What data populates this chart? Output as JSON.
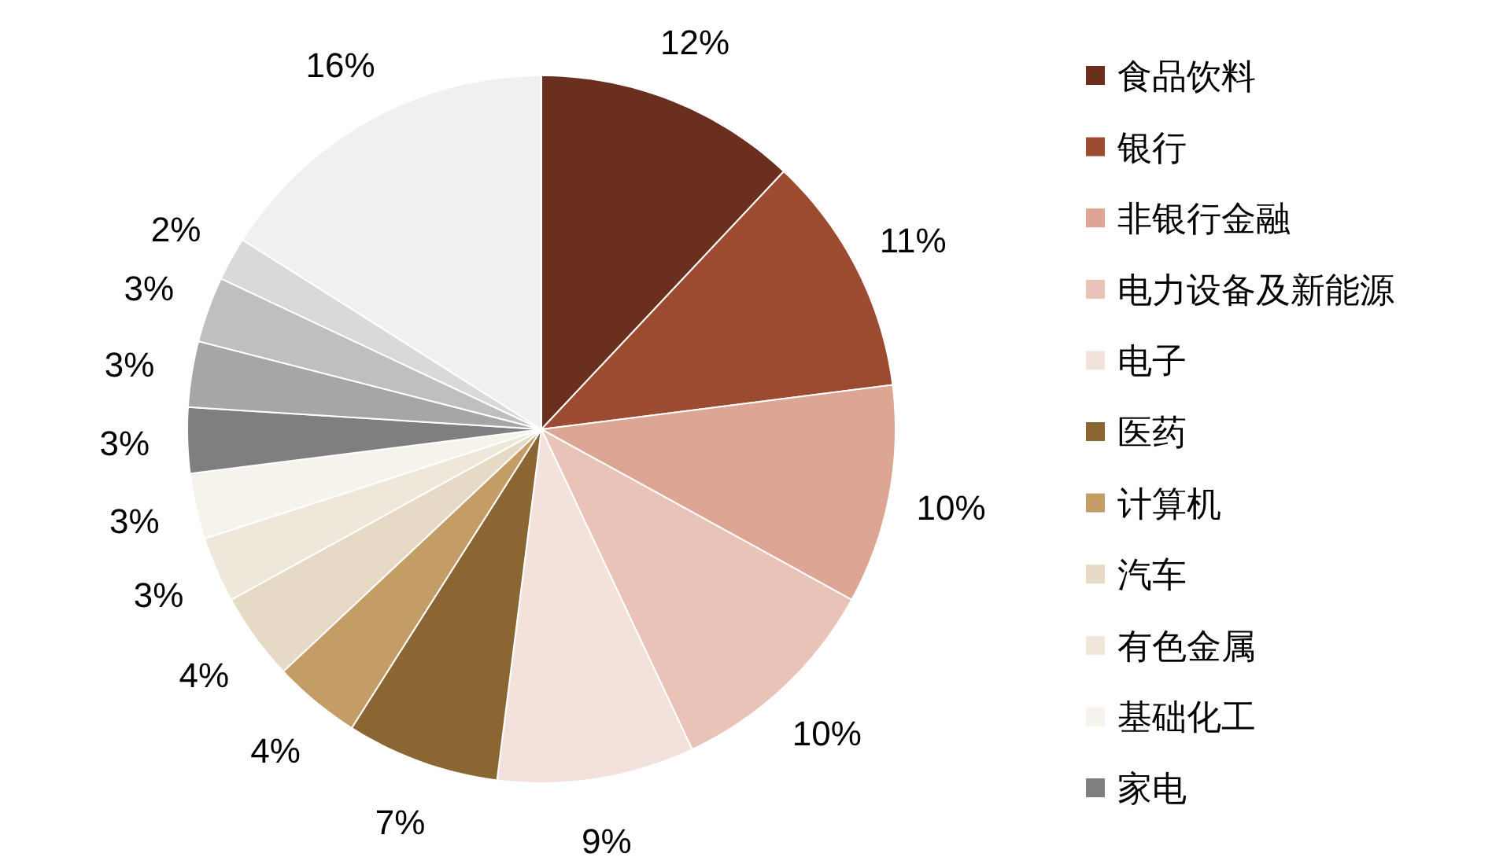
{
  "chart_data": {
    "type": "pie",
    "categories": [
      "食品饮料",
      "银行",
      "非银行金融",
      "电力设备及新能源",
      "电子",
      "医药",
      "计算机",
      "汽车",
      "有色金属",
      "基础化工",
      "家电",
      null,
      null,
      null,
      null
    ],
    "values": [
      12,
      11,
      10,
      10,
      9,
      7,
      4,
      4,
      3,
      3,
      3,
      3,
      3,
      2,
      16
    ],
    "value_labels": [
      "12%",
      "11%",
      "10%",
      "10%",
      "9%",
      "7%",
      "4%",
      "4%",
      "3%",
      "3%",
      "3%",
      "3%",
      "3%",
      "2%",
      "16%"
    ],
    "colors": [
      "#6b2f1f",
      "#9c4a30",
      "#dda593",
      "#e9c3b8",
      "#f3e1dc",
      "#8b6532",
      "#c49d66",
      "#e6dac6",
      "#efe8da",
      "#f6f3ec",
      "#7f7f7f",
      "#a6a6a6",
      "#bfbfbf",
      "#d9d9d9",
      "#f0f0f0"
    ],
    "legend": "right"
  }
}
